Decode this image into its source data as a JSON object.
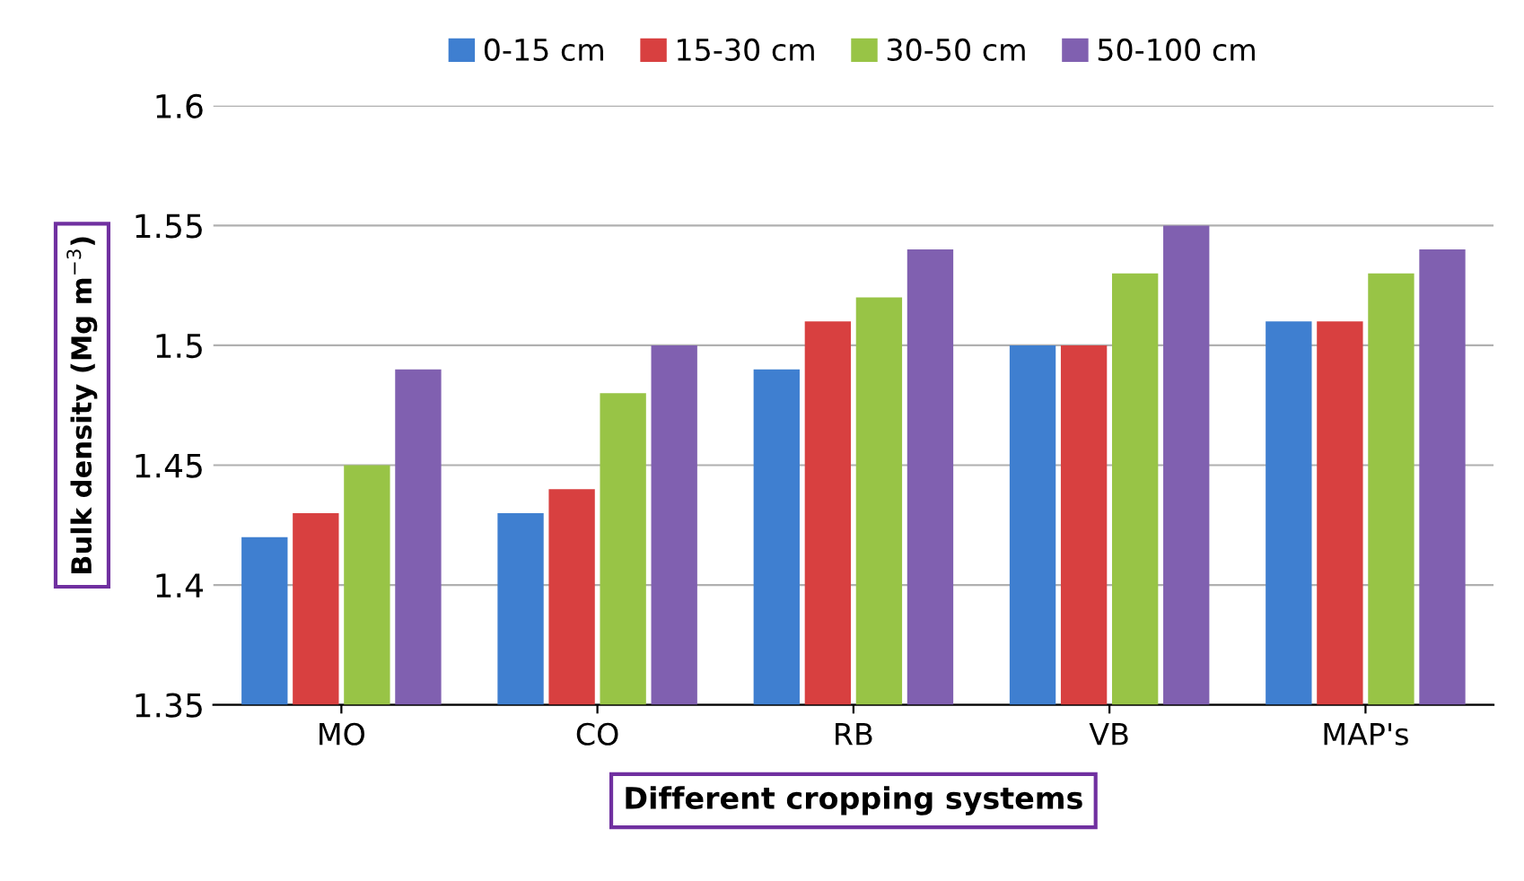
{
  "chart_data": {
    "type": "bar",
    "xlabel": "Different cropping systems",
    "ylabel": "Bulk density (Mg m$^{−3}$)",
    "categories": [
      "MO",
      "CO",
      "RB",
      "VB",
      "MAP's"
    ],
    "series": [
      {
        "name": "0-15 cm",
        "color": "#3f7fd0",
        "values": [
          1.42,
          1.43,
          1.49,
          1.5,
          1.51
        ]
      },
      {
        "name": "15-30 cm",
        "color": "#d84040",
        "values": [
          1.43,
          1.44,
          1.51,
          1.5,
          1.51
        ]
      },
      {
        "name": "30-50 cm",
        "color": "#98c446",
        "values": [
          1.45,
          1.48,
          1.52,
          1.53,
          1.53
        ]
      },
      {
        "name": "50-100 cm",
        "color": "#8060b0",
        "values": [
          1.49,
          1.5,
          1.54,
          1.55,
          1.54
        ]
      }
    ],
    "ylim": [
      1.35,
      1.6
    ],
    "yticks": [
      1.35,
      1.4,
      1.45,
      1.5,
      1.55,
      1.6
    ],
    "grid": "y",
    "legend": "top"
  }
}
